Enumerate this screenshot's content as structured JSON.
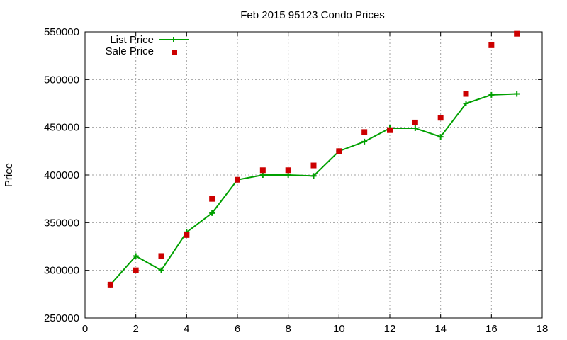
{
  "chart_data": {
    "type": "line",
    "title": "Feb 2015 95123 Condo Prices",
    "xlabel": "",
    "ylabel": "Price",
    "xlim": [
      0,
      18
    ],
    "ylim": [
      250000,
      550000
    ],
    "xticks": [
      0,
      2,
      4,
      6,
      8,
      10,
      12,
      14,
      16,
      18
    ],
    "yticks": [
      250000,
      300000,
      350000,
      400000,
      450000,
      500000,
      550000
    ],
    "grid": true,
    "legend_position": "top-left",
    "series": [
      {
        "name": "List Price",
        "style": "line-with-plus-markers",
        "color": "#00a000",
        "x": [
          1,
          2,
          3,
          4,
          5,
          6,
          7,
          8,
          9,
          10,
          11,
          12,
          13,
          14,
          15,
          16,
          17
        ],
        "y": [
          285000,
          315000,
          300000,
          340000,
          360000,
          395000,
          400000,
          400000,
          399000,
          425000,
          435000,
          449000,
          449000,
          440000,
          475000,
          484000,
          485000
        ]
      },
      {
        "name": "Sale Price",
        "style": "square-markers",
        "color": "#cc0000",
        "x": [
          1,
          2,
          3,
          4,
          5,
          6,
          7,
          8,
          9,
          10,
          11,
          12,
          13,
          14,
          15,
          16,
          17
        ],
        "y": [
          285000,
          300000,
          315000,
          337000,
          375000,
          395000,
          405000,
          405000,
          410000,
          425000,
          445000,
          447000,
          455000,
          460000,
          485000,
          536000,
          548000
        ]
      }
    ]
  }
}
